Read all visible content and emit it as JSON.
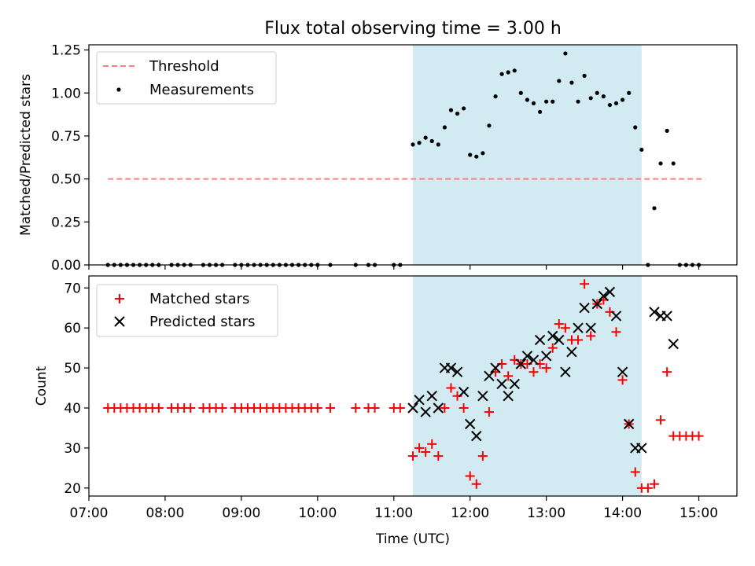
{
  "chart_data": [
    {
      "type": "scatter",
      "title": "Flux total observing time = 3.00 h",
      "ylabel": "Matched/Predicted stars",
      "xlim": [
        "07:00",
        "15:30"
      ],
      "ylim": [
        0,
        1.28
      ],
      "yticks": [
        "0.00",
        "0.25",
        "0.50",
        "0.75",
        "1.00",
        "1.25"
      ],
      "highlight_span": {
        "x0": "11:15",
        "x1": "14:15",
        "color": "#add8e6"
      },
      "legend_position": "upper left",
      "legend": {
        "threshold": "Threshold",
        "measurements": "Measurements"
      },
      "series": [
        {
          "name": "Threshold",
          "style": "dashed-line",
          "color": "#ff7f7f",
          "x": [
            "07:15",
            "15:05"
          ],
          "y": [
            0.5,
            0.5
          ]
        },
        {
          "name": "Measurements",
          "style": "dot",
          "color": "#000000",
          "x": [
            "07:15",
            "07:20",
            "07:25",
            "07:30",
            "07:35",
            "07:40",
            "07:45",
            "07:50",
            "07:55",
            "08:05",
            "08:10",
            "08:15",
            "08:20",
            "08:30",
            "08:35",
            "08:40",
            "08:45",
            "08:55",
            "09:00",
            "09:05",
            "09:10",
            "09:15",
            "09:20",
            "09:25",
            "09:30",
            "09:35",
            "09:40",
            "09:45",
            "09:50",
            "09:55",
            "10:00",
            "10:10",
            "10:30",
            "10:40",
            "10:45",
            "11:00",
            "11:05",
            "11:15",
            "11:20",
            "11:25",
            "11:30",
            "11:35",
            "11:40",
            "11:45",
            "11:50",
            "11:55",
            "12:00",
            "12:05",
            "12:10",
            "12:15",
            "12:20",
            "12:25",
            "12:30",
            "12:35",
            "12:40",
            "12:45",
            "12:50",
            "12:55",
            "13:00",
            "13:05",
            "13:10",
            "13:15",
            "13:20",
            "13:25",
            "13:30",
            "13:35",
            "13:40",
            "13:45",
            "13:50",
            "13:55",
            "14:00",
            "14:05",
            "14:10",
            "14:15",
            "14:20",
            "14:25",
            "14:30",
            "14:35",
            "14:40",
            "14:45",
            "14:50",
            "14:55",
            "15:00"
          ],
          "y": [
            0,
            0,
            0,
            0,
            0,
            0,
            0,
            0,
            0,
            0,
            0,
            0,
            0,
            0,
            0,
            0,
            0,
            0,
            0,
            0,
            0,
            0,
            0,
            0,
            0,
            0,
            0,
            0,
            0,
            0,
            0,
            0,
            0,
            0,
            0,
            0,
            0,
            0.7,
            0.71,
            0.74,
            0.72,
            0.7,
            0.8,
            0.9,
            0.88,
            0.91,
            0.64,
            0.63,
            0.65,
            0.81,
            0.98,
            1.11,
            1.12,
            1.13,
            1.0,
            0.96,
            0.94,
            0.89,
            0.95,
            0.95,
            1.07,
            1.23,
            1.06,
            0.95,
            1.1,
            0.97,
            1.0,
            0.98,
            0.93,
            0.94,
            0.96,
            1.0,
            0.8,
            0.67,
            0.0,
            0.33,
            0.59,
            0.78,
            0.59,
            0.0,
            0.0,
            0.0,
            0.0
          ]
        }
      ]
    },
    {
      "type": "scatter",
      "xlabel": "Time (UTC)",
      "ylabel": "Count",
      "xticks": [
        "07:00",
        "08:00",
        "09:00",
        "10:00",
        "11:00",
        "12:00",
        "13:00",
        "14:00",
        "15:00"
      ],
      "yticks": [
        "20",
        "30",
        "40",
        "50",
        "60",
        "70"
      ],
      "xlim": [
        "07:00",
        "15:30"
      ],
      "ylim": [
        18,
        73
      ],
      "highlight_span": {
        "x0": "11:15",
        "x1": "14:15",
        "color": "#add8e6"
      },
      "legend_position": "upper left",
      "legend": {
        "matched": "Matched stars",
        "predicted": "Predicted stars"
      },
      "series": [
        {
          "name": "Matched stars",
          "marker": "+",
          "color": "#ff0000",
          "x": [
            "07:15",
            "07:20",
            "07:25",
            "07:30",
            "07:35",
            "07:40",
            "07:45",
            "07:50",
            "07:55",
            "08:05",
            "08:10",
            "08:15",
            "08:20",
            "08:30",
            "08:35",
            "08:40",
            "08:45",
            "08:55",
            "09:00",
            "09:05",
            "09:10",
            "09:15",
            "09:20",
            "09:25",
            "09:30",
            "09:35",
            "09:40",
            "09:45",
            "09:50",
            "09:55",
            "10:00",
            "10:10",
            "10:30",
            "10:40",
            "10:45",
            "11:00",
            "11:05",
            "11:15",
            "11:20",
            "11:25",
            "11:30",
            "11:35",
            "11:40",
            "11:45",
            "11:50",
            "11:55",
            "12:00",
            "12:05",
            "12:10",
            "12:15",
            "12:20",
            "12:25",
            "12:30",
            "12:35",
            "12:40",
            "12:45",
            "12:50",
            "12:55",
            "13:00",
            "13:05",
            "13:10",
            "13:15",
            "13:20",
            "13:25",
            "13:30",
            "13:35",
            "13:40",
            "13:45",
            "13:50",
            "13:55",
            "14:00",
            "14:05",
            "14:10",
            "14:15",
            "14:20",
            "14:25",
            "14:30",
            "14:35",
            "14:40",
            "14:45",
            "14:50",
            "14:55",
            "15:00"
          ],
          "y": [
            40,
            40,
            40,
            40,
            40,
            40,
            40,
            40,
            40,
            40,
            40,
            40,
            40,
            40,
            40,
            40,
            40,
            40,
            40,
            40,
            40,
            40,
            40,
            40,
            40,
            40,
            40,
            40,
            40,
            40,
            40,
            40,
            40,
            40,
            40,
            40,
            40,
            28,
            30,
            29,
            31,
            28,
            40,
            45,
            43,
            40,
            23,
            21,
            28,
            39,
            49,
            51,
            48,
            52,
            51,
            51,
            49,
            51,
            50,
            55,
            61,
            60,
            57,
            57,
            71,
            58,
            66,
            67,
            64,
            59,
            47,
            36,
            24,
            20,
            20,
            21,
            37,
            49,
            33,
            33,
            33,
            33,
            33
          ]
        },
        {
          "name": "Predicted stars",
          "marker": "x",
          "color": "#000000",
          "x": [
            "11:15",
            "11:20",
            "11:25",
            "11:30",
            "11:35",
            "11:40",
            "11:45",
            "11:50",
            "11:55",
            "12:00",
            "12:05",
            "12:10",
            "12:15",
            "12:20",
            "12:25",
            "12:30",
            "12:35",
            "12:40",
            "12:45",
            "12:50",
            "12:55",
            "13:00",
            "13:05",
            "13:10",
            "13:15",
            "13:20",
            "13:25",
            "13:30",
            "13:35",
            "13:40",
            "13:45",
            "13:50",
            "13:55",
            "14:00",
            "14:05",
            "14:10",
            "14:15",
            "14:25",
            "14:30",
            "14:35",
            "14:40"
          ],
          "y": [
            40,
            42,
            39,
            43,
            40,
            50,
            50,
            49,
            44,
            36,
            33,
            43,
            48,
            50,
            46,
            43,
            46,
            51,
            53,
            52,
            57,
            53,
            58,
            57,
            49,
            54,
            60,
            65,
            60,
            66,
            68,
            69,
            63,
            49,
            36,
            30,
            30,
            64,
            63,
            63,
            56
          ]
        }
      ]
    }
  ]
}
